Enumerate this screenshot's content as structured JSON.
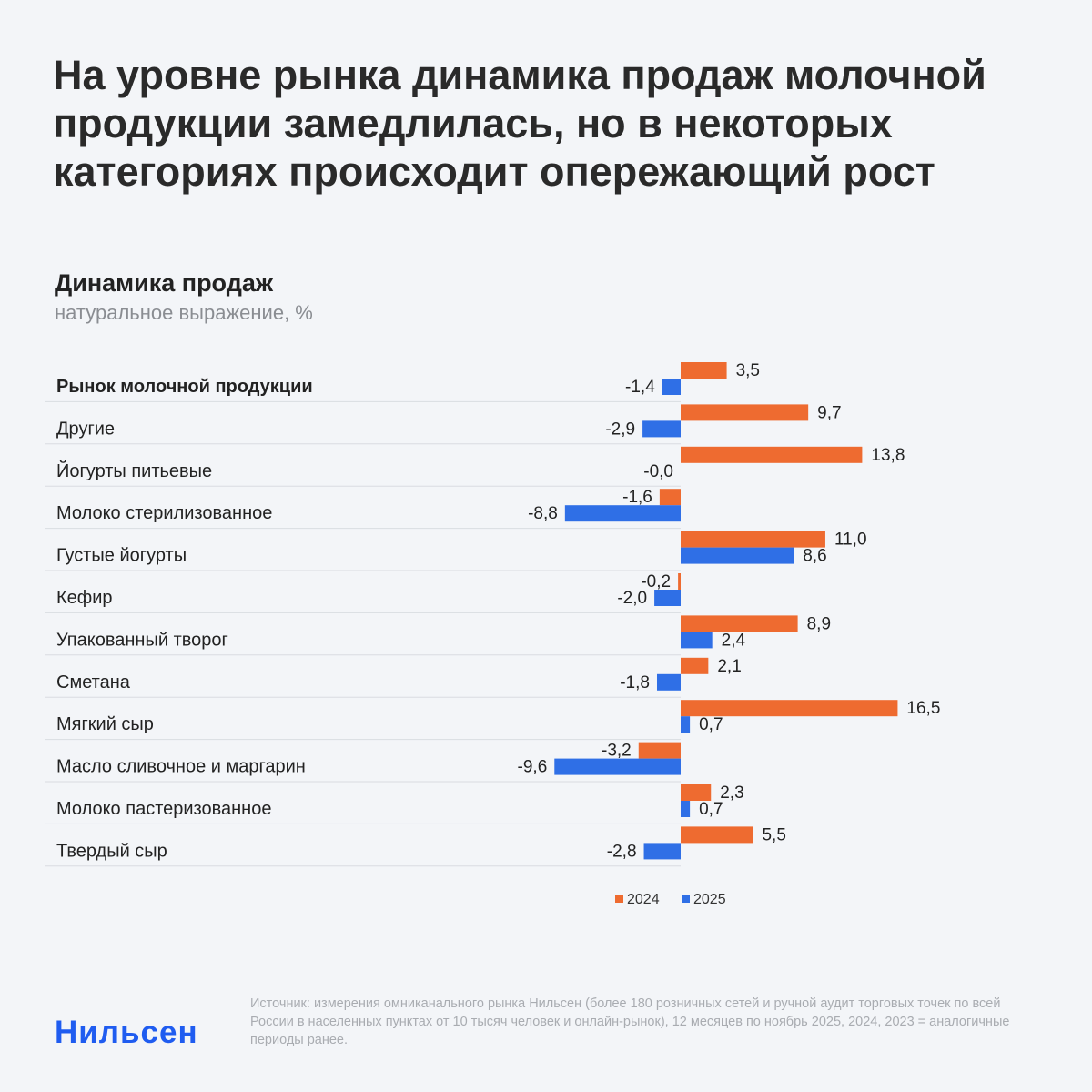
{
  "headline": "На уровне рынка динамика продаж молочной продукции замедлилась, но в некоторых категориях происходит опережающий рост",
  "colors": {
    "s2024": "#ee6b30",
    "s2025": "#2f6fe6"
  },
  "chart_data": {
    "type": "bar",
    "orientation": "horizontal",
    "title": "Динамика продаж",
    "subtitle": "натуральное выражение, %",
    "categories": [
      "Рынок молочной продукции",
      "Другие",
      "Йогурты питьевые",
      "Молоко стерилизованное",
      "Густые йогурты",
      "Кефир",
      "Упакованный творог",
      "Сметана",
      "Мягкий сыр",
      "Масло сливочное и маргарин",
      "Молоко пастеризованное",
      "Твердый сыр"
    ],
    "series": [
      {
        "name": "2024",
        "values": [
          3.5,
          9.7,
          13.8,
          -1.6,
          11.0,
          -0.2,
          8.9,
          2.1,
          16.5,
          -3.2,
          2.3,
          5.5
        ],
        "labels": [
          "3,5",
          "9,7",
          "13,8",
          "-1,6",
          "11,0",
          "-0,2",
          "8,9",
          "2,1",
          "16,5",
          "-3,2",
          "2,3",
          "5,5"
        ]
      },
      {
        "name": "2025",
        "values": [
          -1.4,
          -2.9,
          -0.0,
          -8.8,
          8.6,
          -2.0,
          2.4,
          -1.8,
          0.7,
          -9.6,
          0.7,
          -2.8
        ],
        "labels": [
          "-1,4",
          "-2,9",
          "-0,0",
          "-8,8",
          "8,6",
          "-2,0",
          "2,4",
          "-1,8",
          "0,7",
          "-9,6",
          "0,7",
          "-2,8"
        ]
      }
    ],
    "legend": "bottom"
  },
  "logo": "Нильсен",
  "source": "Источник: измерения омниканального рынка Нильсен (более 180 розничных сетей и ручной аудит торговых точек по всей России в населенных пунктах от 10 тысяч человек и онлайн-рынок), 12 месяцев по ноябрь 2025, 2024, 2023 = аналогичные периоды ранее."
}
